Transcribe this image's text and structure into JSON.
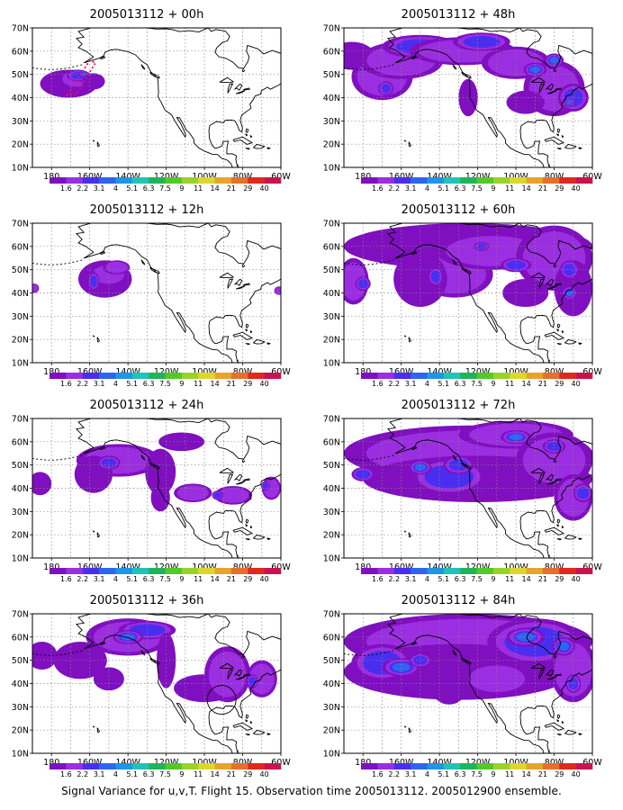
{
  "figure": {
    "caption": "Signal Variance for u,v,T. Flight 15. Observation time 2005013112. 2005012900 ensemble."
  },
  "map": {
    "lat_labels": [
      "70N",
      "60N",
      "50N",
      "40N",
      "30N",
      "20N",
      "10N"
    ],
    "lon_labels": [
      "180",
      "160W",
      "140W",
      "120W",
      "100W",
      "80W",
      "60W"
    ],
    "extent": {
      "lon_west": -190,
      "lon_east": -60,
      "lat_south": 10,
      "lat_north": 70
    }
  },
  "colorbar": {
    "labels": [
      "1.6",
      "2.2",
      "3.1",
      "4",
      "5.1",
      "6.3",
      "7.5",
      "9",
      "11",
      "14",
      "21",
      "29",
      "40"
    ],
    "colors": [
      "#7f0fbf",
      "#9b2ee0",
      "#4a2ef0",
      "#2f65ee",
      "#1f95e6",
      "#20c3b8",
      "#1fb45a",
      "#52c928",
      "#9bd22a",
      "#dcd72a",
      "#e6a52a",
      "#e6702a",
      "#e0281e",
      "#c8144e"
    ]
  },
  "panels": [
    {
      "title": "2005013112 + 00h"
    },
    {
      "title": "2005013112 + 48h"
    },
    {
      "title": "2005013112 + 12h"
    },
    {
      "title": "2005013112 + 60h"
    },
    {
      "title": "2005013112 + 24h"
    },
    {
      "title": "2005013112 + 72h"
    },
    {
      "title": "2005013112 + 36h"
    },
    {
      "title": "2005013112 + 84h"
    }
  ]
}
